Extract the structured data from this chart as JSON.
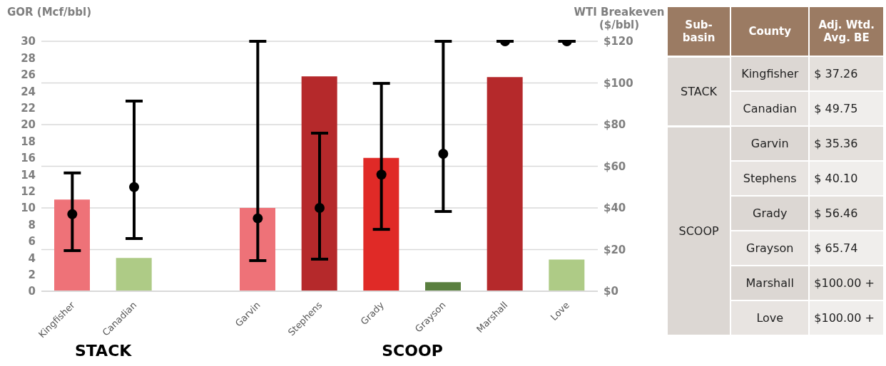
{
  "chart_data": [
    {
      "type": "bar",
      "ylabel": "GOR (Mcf/bbl)",
      "y2label": "WTI Breakeven ($/bbl)",
      "categories": [
        "Kingfisher",
        "Canadian",
        null,
        "Garvin",
        "Stephens",
        "Grady",
        "Grayson",
        "Marshall",
        "Love"
      ],
      "series": [
        {
          "colors": [
            "#ee7278",
            "#aecb86",
            "#ee7278",
            "#ee7278",
            "#b5292b",
            "#e02a27",
            "#5a7f3f",
            "#b5292b",
            "#aecb86"
          ],
          "values": [
            11.0,
            4.0,
            null,
            10.0,
            25.8,
            16.0,
            1.1,
            25.7,
            3.8
          ]
        },
        {
          "type": "scatter",
          "axis": "y2",
          "color": "#000000",
          "marker": "circle",
          "values": [
            37,
            50,
            null,
            35,
            40,
            56,
            66,
            120,
            120
          ],
          "errors": [
            [
              19.5,
              56.8
            ],
            [
              25.3,
              91.3
            ],
            null,
            [
              14.7,
              120
            ],
            [
              15.4,
              75.9
            ],
            [
              29.7,
              99.8
            ],
            [
              38.3,
              120
            ],
            null,
            null
          ]
        }
      ],
      "ylim": [
        0,
        30
      ],
      "yticks": [
        0,
        2,
        4,
        6,
        8,
        10,
        12,
        14,
        16,
        18,
        20,
        22,
        24,
        26,
        28,
        30
      ],
      "y2lim": [
        0,
        120
      ],
      "y2ticks": [
        {
          "value": 0,
          "label": "$0"
        },
        {
          "value": 20,
          "label": "$20"
        },
        {
          "value": 40,
          "label": "$40"
        },
        {
          "value": 60,
          "label": "$60"
        },
        {
          "value": 80,
          "label": "$80"
        },
        {
          "value": 100,
          "label": "$100"
        },
        {
          "value": 120,
          "label": "$120"
        }
      ],
      "grid": "y2",
      "annotations": [
        "STACK",
        "SCOOP"
      ]
    },
    {
      "type": "other",
      "categories": [
        "Kingfisher",
        "Canadian",
        null,
        "Garvin",
        "Stephens",
        "Grady",
        "Grayson",
        "Marshall",
        "Love"
      ],
      "value_labels": [
        "$ 37.26",
        "$ 49.75",
        null,
        "$ 35.36",
        "$ 40.10",
        "$ 56.46",
        "$ 65.74",
        "$100.00 +",
        "$100.00 +"
      ],
      "annotations": [
        "Sub-basin",
        "County",
        "Adj. Wtd. Avg. BE",
        "STACK",
        "SCOOP"
      ]
    }
  ]
}
